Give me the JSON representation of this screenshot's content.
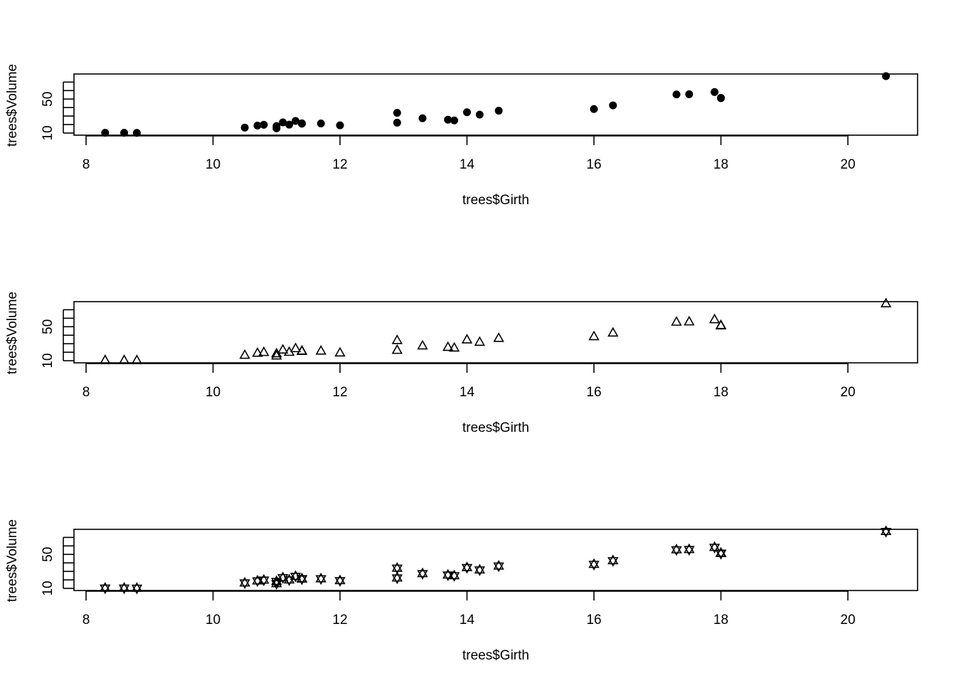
{
  "chart_data": [
    {
      "type": "scatter",
      "marker": "filled-circle",
      "xlabel": "trees$Girth",
      "ylabel": "trees$Volume",
      "xlim": [
        8,
        21
      ],
      "ylim": [
        10,
        77
      ],
      "x_ticks": [
        "8",
        "10",
        "12",
        "14",
        "16",
        "18",
        "20"
      ],
      "y_ticks": [
        "10",
        "50"
      ],
      "series": [
        {
          "x": [
            8.3,
            8.6,
            8.8,
            10.5,
            10.7,
            10.8,
            11.0,
            11.0,
            11.1,
            11.2,
            11.3,
            11.4,
            11.4,
            11.7,
            12.0,
            12.9,
            12.9,
            13.3,
            13.7,
            13.8,
            14.0,
            14.2,
            14.5,
            16.0,
            16.3,
            17.3,
            17.5,
            17.9,
            18.0,
            18.0,
            20.6
          ],
          "y": [
            10.3,
            10.3,
            10.2,
            16.4,
            18.8,
            19.7,
            15.6,
            18.2,
            22.6,
            19.9,
            24.2,
            21.0,
            21.4,
            21.3,
            19.1,
            22.2,
            33.8,
            27.4,
            25.7,
            24.9,
            34.5,
            31.7,
            36.3,
            38.3,
            42.6,
            55.4,
            55.7,
            58.3,
            51.5,
            51.0,
            77.0
          ]
        }
      ]
    },
    {
      "type": "scatter",
      "marker": "open-triangle",
      "xlabel": "trees$Girth",
      "ylabel": "trees$Volume",
      "xlim": [
        8,
        21
      ],
      "ylim": [
        10,
        77
      ],
      "x_ticks": [
        "8",
        "10",
        "12",
        "14",
        "16",
        "18",
        "20"
      ],
      "y_ticks": [
        "10",
        "50"
      ],
      "series": [
        {
          "x": [
            8.3,
            8.6,
            8.8,
            10.5,
            10.7,
            10.8,
            11.0,
            11.0,
            11.1,
            11.2,
            11.3,
            11.4,
            11.4,
            11.7,
            12.0,
            12.9,
            12.9,
            13.3,
            13.7,
            13.8,
            14.0,
            14.2,
            14.5,
            16.0,
            16.3,
            17.3,
            17.5,
            17.9,
            18.0,
            18.0,
            20.6
          ],
          "y": [
            10.3,
            10.3,
            10.2,
            16.4,
            18.8,
            19.7,
            15.6,
            18.2,
            22.6,
            19.9,
            24.2,
            21.0,
            21.4,
            21.3,
            19.1,
            22.2,
            33.8,
            27.4,
            25.7,
            24.9,
            34.5,
            31.7,
            36.3,
            38.3,
            42.6,
            55.4,
            55.7,
            58.3,
            51.5,
            51.0,
            77.0
          ]
        }
      ]
    },
    {
      "type": "scatter",
      "marker": "star-of-david",
      "xlabel": "trees$Girth",
      "ylabel": "trees$Volume",
      "xlim": [
        8,
        21
      ],
      "ylim": [
        10,
        77
      ],
      "x_ticks": [
        "8",
        "10",
        "12",
        "14",
        "16",
        "18",
        "20"
      ],
      "y_ticks": [
        "10",
        "50"
      ],
      "series": [
        {
          "x": [
            8.3,
            8.6,
            8.8,
            10.5,
            10.7,
            10.8,
            11.0,
            11.0,
            11.1,
            11.2,
            11.3,
            11.4,
            11.4,
            11.7,
            12.0,
            12.9,
            12.9,
            13.3,
            13.7,
            13.8,
            14.0,
            14.2,
            14.5,
            16.0,
            16.3,
            17.3,
            17.5,
            17.9,
            18.0,
            18.0,
            20.6
          ],
          "y": [
            10.3,
            10.3,
            10.2,
            16.4,
            18.8,
            19.7,
            15.6,
            18.2,
            22.6,
            19.9,
            24.2,
            21.0,
            21.4,
            21.3,
            19.1,
            22.2,
            33.8,
            27.4,
            25.7,
            24.9,
            34.5,
            31.7,
            36.3,
            38.3,
            42.6,
            55.4,
            55.7,
            58.3,
            51.5,
            51.0,
            77.0
          ]
        }
      ]
    }
  ]
}
